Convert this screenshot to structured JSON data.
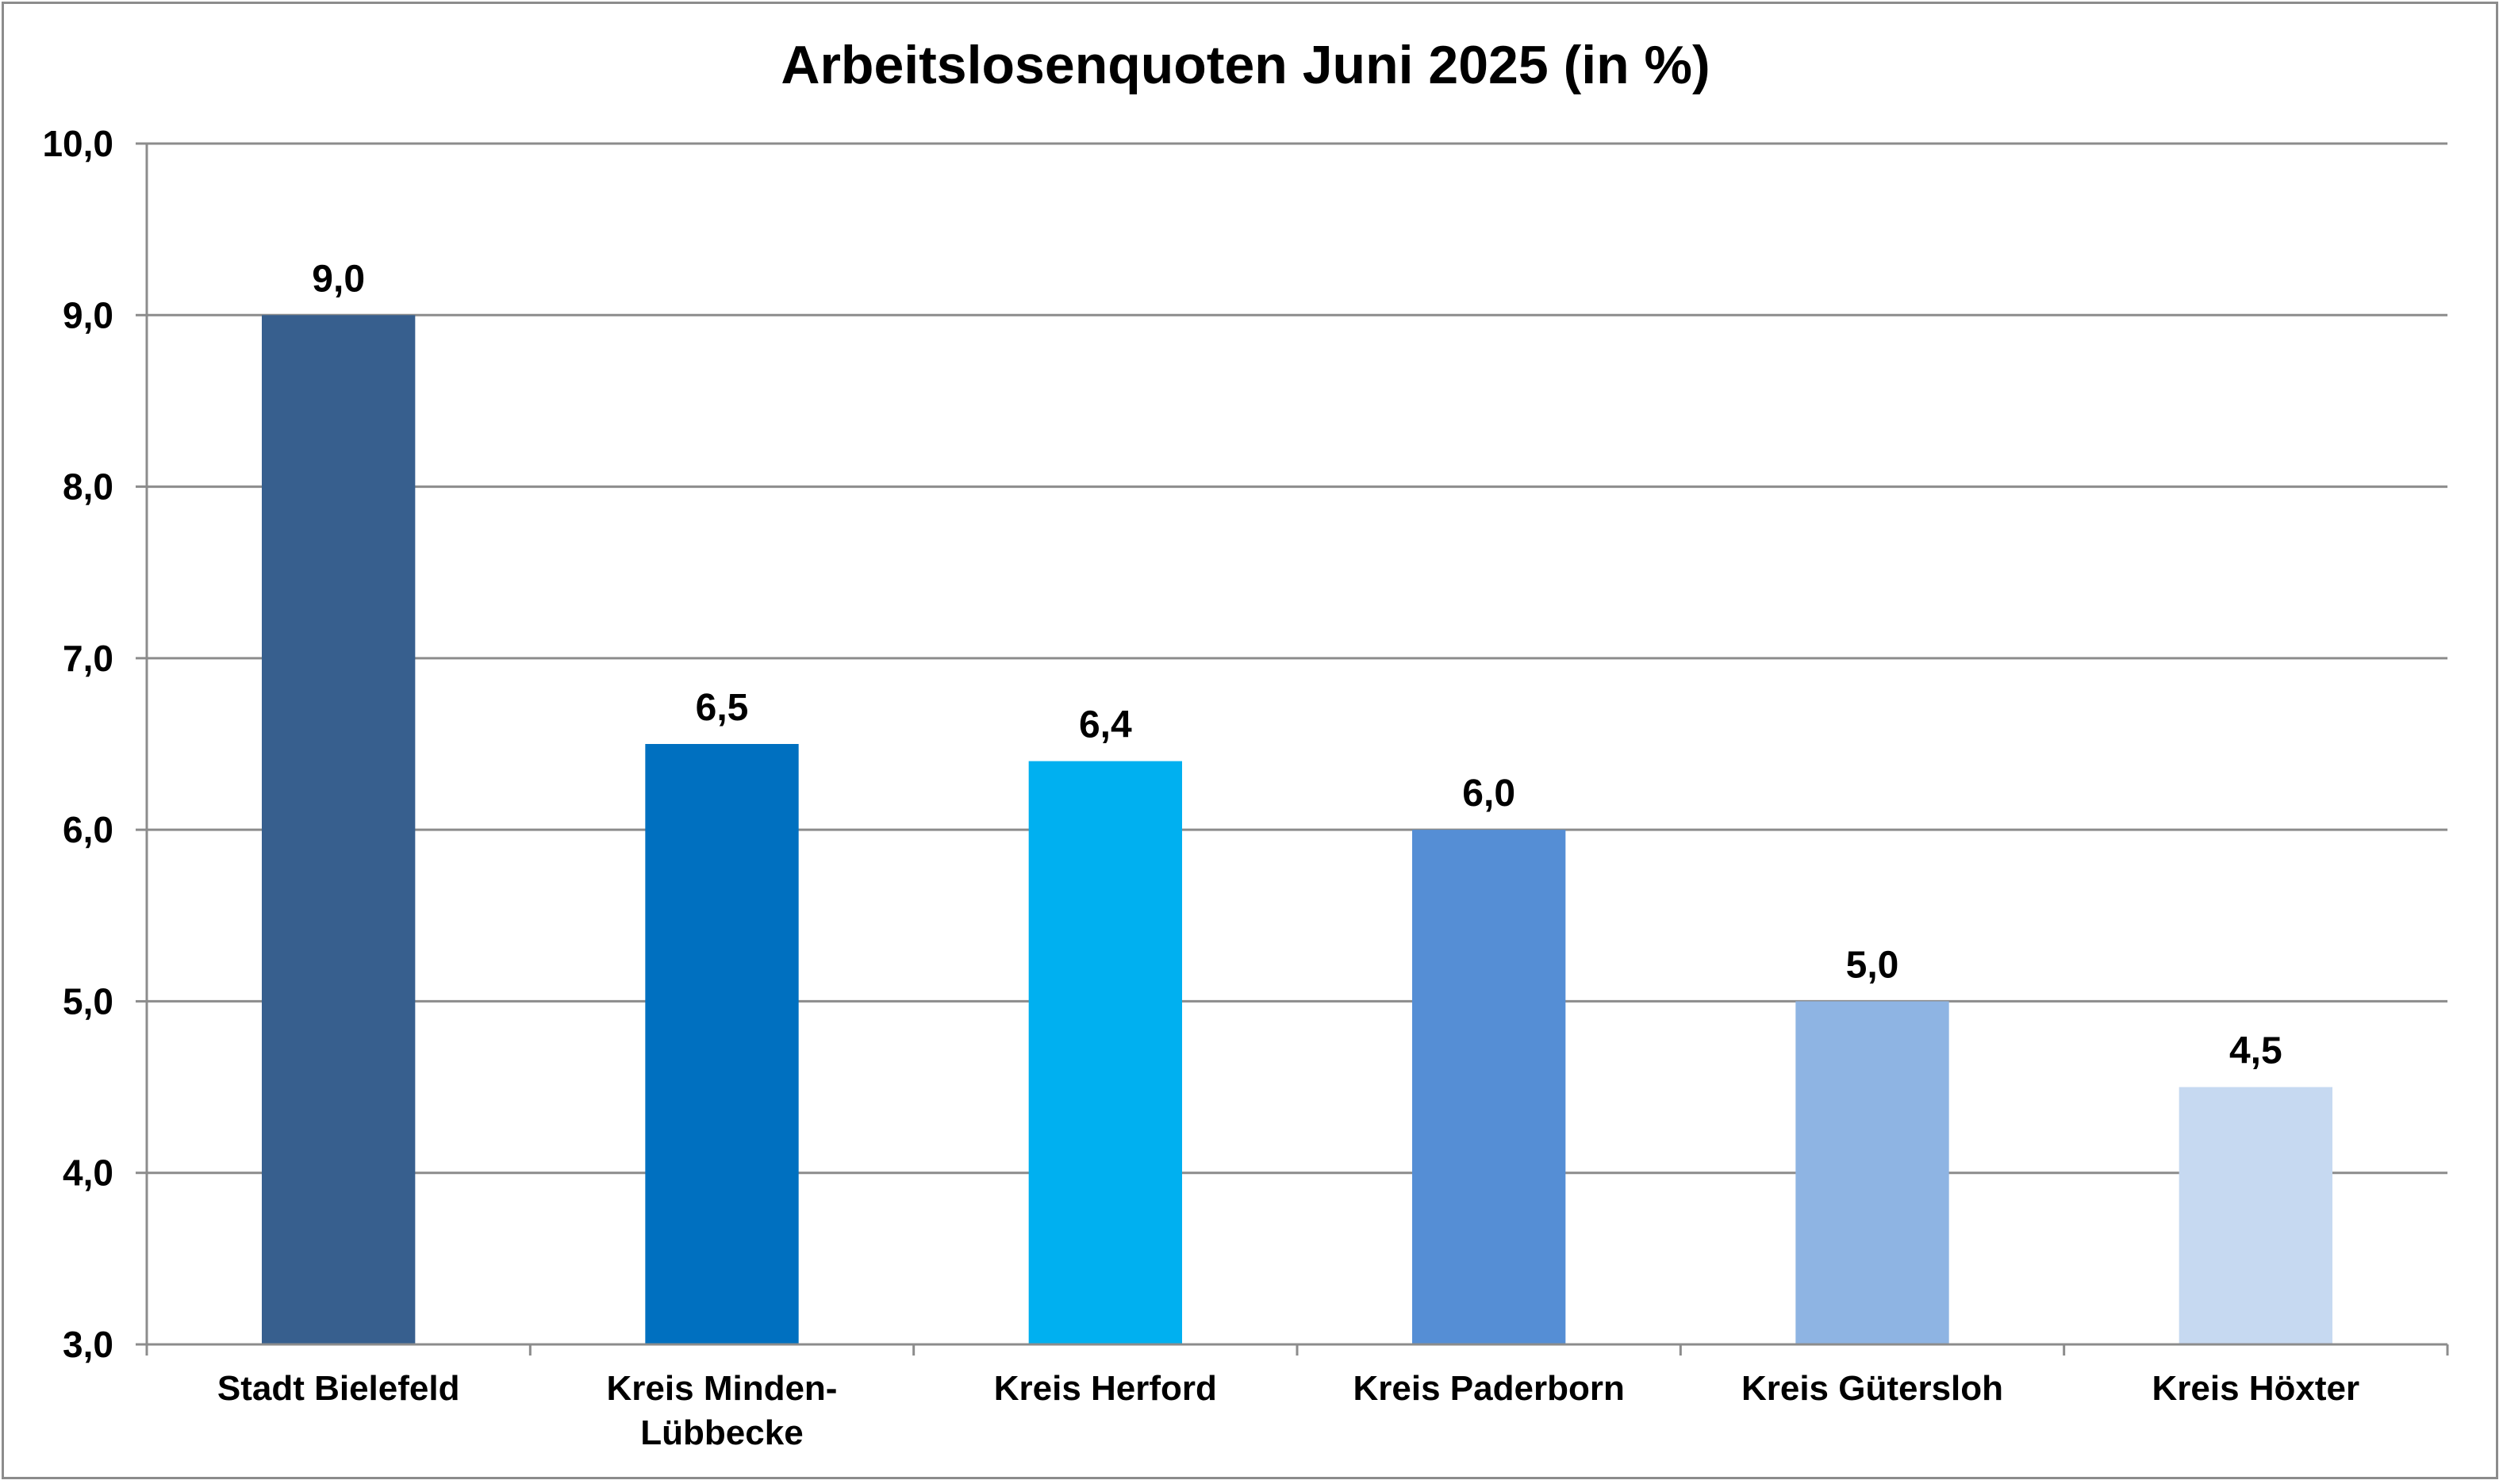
{
  "chart_data": {
    "type": "bar",
    "title": "Arbeitslosenquoten Juni 2025 (in %)",
    "xlabel": "",
    "ylabel": "",
    "ylim": [
      3.0,
      10.0
    ],
    "yticks": [
      "3,0",
      "4,0",
      "5,0",
      "6,0",
      "7,0",
      "8,0",
      "9,0",
      "10,0"
    ],
    "ytick_values": [
      3,
      4,
      5,
      6,
      7,
      8,
      9,
      10
    ],
    "grid": true,
    "legend": "none",
    "categories": [
      [
        "Stadt Bielefeld"
      ],
      [
        "Kreis Minden-",
        "Lübbecke"
      ],
      [
        "Kreis Herford"
      ],
      [
        "Kreis Paderborn"
      ],
      [
        "Kreis Gütersloh"
      ],
      [
        "Kreis Höxter"
      ]
    ],
    "values": [
      9.0,
      6.5,
      6.4,
      6.0,
      5.0,
      4.5
    ],
    "value_labels": [
      "9,0",
      "6,5",
      "6,4",
      "6,0",
      "5,0",
      "4,5"
    ],
    "colors": [
      "#375f8e",
      "#0070c0",
      "#00b0f0",
      "#558ed5",
      "#8eb4e3",
      "#c6d9f1"
    ]
  }
}
